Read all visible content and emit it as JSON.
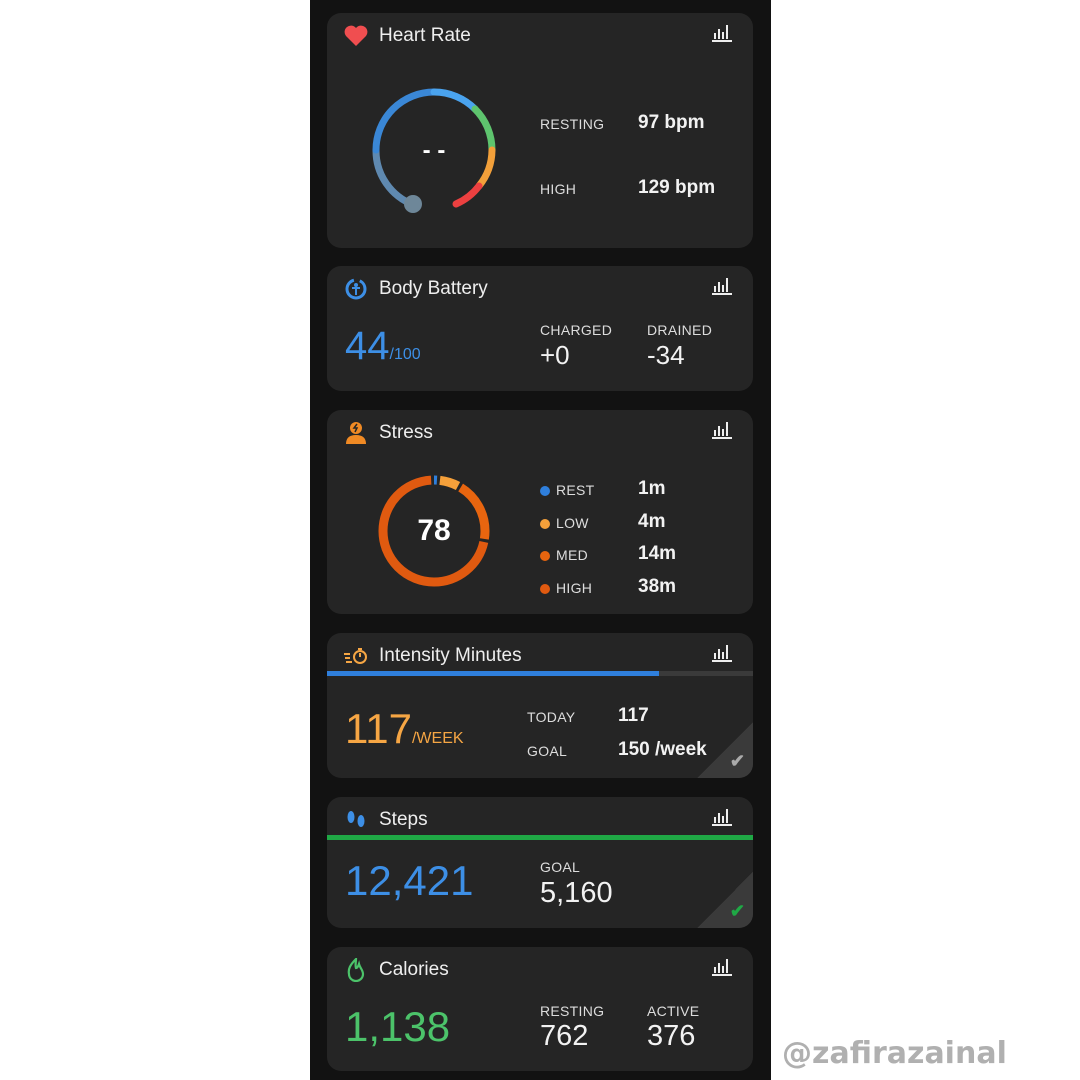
{
  "heart_rate": {
    "title": "Heart Rate",
    "current": "- -",
    "resting_label": "RESTING",
    "resting_value": "97 bpm",
    "high_label": "HIGH",
    "high_value": "129 bpm"
  },
  "body_battery": {
    "title": "Body Battery",
    "value": "44",
    "max": "/100",
    "charged_label": "CHARGED",
    "charged_value": "+0",
    "drained_label": "DRAINED",
    "drained_value": "-34"
  },
  "stress": {
    "title": "Stress",
    "value": "78",
    "items": [
      {
        "label": "REST",
        "value": "1m",
        "color": "#2f7fdc"
      },
      {
        "label": "LOW",
        "value": "4m",
        "color": "#f5a03a"
      },
      {
        "label": "MED",
        "value": "14m",
        "color": "#e8650f"
      },
      {
        "label": "HIGH",
        "value": "38m",
        "color": "#e05a10"
      }
    ]
  },
  "intensity": {
    "title": "Intensity Minutes",
    "value": "117",
    "unit": "/WEEK",
    "progress_percent": 78,
    "today_label": "TODAY",
    "today_value": "117",
    "goal_label": "GOAL",
    "goal_value": "150 /week",
    "check": "✔"
  },
  "steps": {
    "title": "Steps",
    "value": "12,421",
    "goal_label": "GOAL",
    "goal_value": "5,160",
    "progress_percent": 100,
    "check": "✔"
  },
  "calories": {
    "title": "Calories",
    "value": "1,138",
    "resting_label": "RESTING",
    "resting_value": "762",
    "active_label": "ACTIVE",
    "active_value": "376"
  },
  "watermark": "@zafirazainal",
  "colors": {
    "blue": "#3d8fe6",
    "orange": "#f6a644",
    "green": "#4cc36a",
    "stepbar": "#1fa845"
  }
}
